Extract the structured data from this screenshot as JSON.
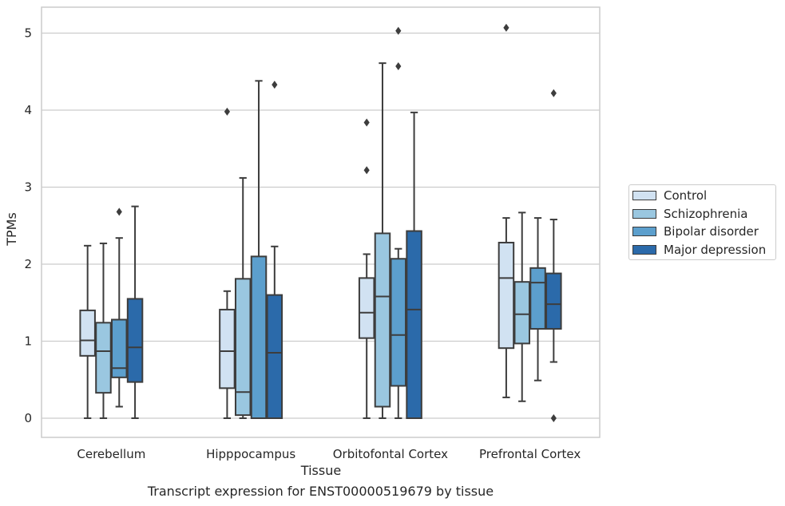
{
  "chart_data": {
    "type": "box",
    "xlabel": "Tissue",
    "ylabel": "TPMs",
    "caption": "Transcript expression for ENST00000519679 by tissue",
    "ylim": [
      -0.25,
      5.33
    ],
    "yticks": [
      0,
      1,
      2,
      3,
      4,
      5
    ],
    "grid": true,
    "legend_position": "right",
    "categories": [
      "Cerebellum",
      "Hipppocampus",
      "Orbitofontal Cortex",
      "Prefrontal Cortex"
    ],
    "series": [
      {
        "name": "Control",
        "color": "#d1e2f2",
        "boxes": [
          {
            "min": 0.0,
            "q1": 0.81,
            "median": 1.01,
            "q3": 1.4,
            "max": 2.24,
            "outliers": []
          },
          {
            "min": 0.0,
            "q1": 0.39,
            "median": 0.87,
            "q3": 1.41,
            "max": 1.65,
            "outliers": [
              3.98
            ]
          },
          {
            "min": 0.0,
            "q1": 1.04,
            "median": 1.37,
            "q3": 1.82,
            "max": 2.13,
            "outliers": [
              3.22,
              3.84
            ]
          },
          {
            "min": 0.27,
            "q1": 0.91,
            "median": 1.82,
            "q3": 2.28,
            "max": 2.6,
            "outliers": [
              5.07
            ]
          }
        ]
      },
      {
        "name": "Schizophrenia",
        "color": "#9ac7e0",
        "boxes": [
          {
            "min": 0.0,
            "q1": 0.33,
            "median": 0.87,
            "q3": 1.24,
            "max": 2.27,
            "outliers": []
          },
          {
            "min": 0.0,
            "q1": 0.04,
            "median": 0.34,
            "q3": 1.81,
            "max": 3.12,
            "outliers": []
          },
          {
            "min": 0.0,
            "q1": 0.15,
            "median": 1.58,
            "q3": 2.4,
            "max": 4.61,
            "outliers": []
          },
          {
            "min": 0.22,
            "q1": 0.97,
            "median": 1.35,
            "q3": 1.77,
            "max": 2.67,
            "outliers": []
          }
        ]
      },
      {
        "name": "Bipolar disorder",
        "color": "#5c9fcd",
        "boxes": [
          {
            "min": 0.15,
            "q1": 0.53,
            "median": 0.65,
            "q3": 1.28,
            "max": 2.34,
            "outliers": [
              2.68
            ]
          },
          {
            "min": 0.0,
            "q1": 0.0,
            "median": 0.0,
            "q3": 2.1,
            "max": 4.38,
            "outliers": []
          },
          {
            "min": 0.0,
            "q1": 0.42,
            "median": 1.08,
            "q3": 2.07,
            "max": 2.2,
            "outliers": [
              4.57,
              5.03
            ]
          },
          {
            "min": 0.49,
            "q1": 1.16,
            "median": 1.76,
            "q3": 1.95,
            "max": 2.6,
            "outliers": []
          }
        ]
      },
      {
        "name": "Major depression",
        "color": "#2b6aaa",
        "boxes": [
          {
            "min": 0.0,
            "q1": 0.47,
            "median": 0.92,
            "q3": 1.55,
            "max": 2.75,
            "outliers": []
          },
          {
            "min": 0.0,
            "q1": 0.0,
            "median": 0.85,
            "q3": 1.6,
            "max": 2.23,
            "outliers": [
              4.33
            ]
          },
          {
            "min": 0.0,
            "q1": 0.0,
            "median": 1.41,
            "q3": 2.43,
            "max": 3.97,
            "outliers": []
          },
          {
            "min": 0.73,
            "q1": 1.16,
            "median": 1.48,
            "q3": 1.88,
            "max": 2.58,
            "outliers": [
              0.0,
              4.22
            ]
          }
        ]
      }
    ]
  }
}
